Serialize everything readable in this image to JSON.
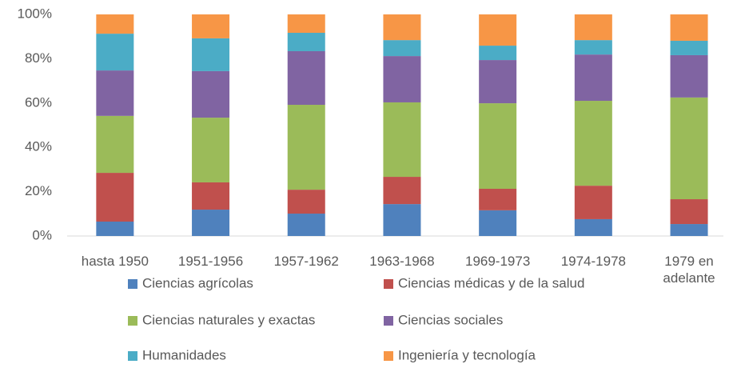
{
  "chart_data": {
    "type": "stacked_bar_percent",
    "categories": [
      "hasta 1950",
      "1951-1956",
      "1957-1962",
      "1963-1968",
      "1969-1973",
      "1974-1978",
      "1979 en adelante"
    ],
    "series": [
      {
        "name": "Ciencias agrícolas",
        "color": "#4f81bd",
        "values": [
          6.5,
          11.9,
          10.1,
          14.4,
          11.6,
          7.6,
          5.4
        ]
      },
      {
        "name": "Ciencias médicas y de la salud",
        "color": "#c0504d",
        "values": [
          22,
          12.3,
          10.8,
          12.3,
          9.7,
          15.1,
          11.2
        ]
      },
      {
        "name": "Ciencias naturales y exactas",
        "color": "#9bbb59",
        "values": [
          25.7,
          29.2,
          38.3,
          33.6,
          38.6,
          38.3,
          45.9
        ]
      },
      {
        "name": "Ciencias sociales",
        "color": "#8064a2",
        "values": [
          20.5,
          21,
          24.2,
          20.9,
          19.5,
          20.9,
          19.1
        ]
      },
      {
        "name": "Humanidades",
        "color": "#4bacc6",
        "values": [
          16.6,
          14.8,
          8.3,
          7.2,
          6.5,
          6.5,
          6.5
        ]
      },
      {
        "name": "Ingeniería y tecnología",
        "color": "#f79646",
        "values": [
          8.7,
          10.8,
          8.3,
          11.6,
          14.1,
          11.6,
          11.9
        ]
      }
    ],
    "ylim": [
      0,
      100
    ],
    "yticks": [
      {
        "value": 0,
        "label": "0%"
      },
      {
        "value": 20,
        "label": "20%"
      },
      {
        "value": 40,
        "label": "40%"
      },
      {
        "value": 60,
        "label": "60%"
      },
      {
        "value": 80,
        "label": "80%"
      },
      {
        "value": 100,
        "label": "100%"
      }
    ],
    "grid": false,
    "legend": "bottom"
  }
}
